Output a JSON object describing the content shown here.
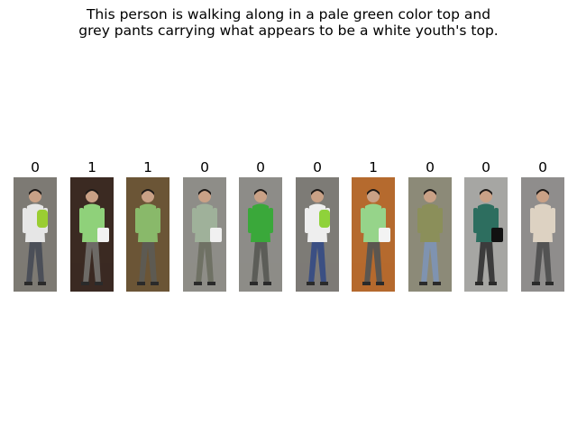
{
  "caption": {
    "line1": "This person is walking along in a pale green color top and",
    "line2": "grey pants carrying what appears to be a white youth's top."
  },
  "gallery": {
    "items": [
      {
        "label": "0",
        "image": "person-crop-green-backpack-woman",
        "bg": "#7d7a74",
        "top": "#e6e6e6",
        "pants": "#4b4f58",
        "accent": "#9acd32",
        "has_bag": false,
        "has_backpack": true
      },
      {
        "label": "1",
        "image": "person-crop-green-top-white-bag",
        "bg": "#3b2a22",
        "top": "#8fd17a",
        "pants": "#6d6a66",
        "accent": "#f2f2f2",
        "has_bag": true,
        "has_backpack": false
      },
      {
        "label": "1",
        "image": "person-crop-green-top-dim",
        "bg": "#6b5536",
        "top": "#89b96a",
        "pants": "#5d5a52",
        "accent": "#f2f2f2",
        "has_bag": false,
        "has_backpack": false
      },
      {
        "label": "0",
        "image": "person-crop-striped-top-white-bag",
        "bg": "#8e8d88",
        "top": "#9fb19a",
        "pants": "#6f7164",
        "accent": "#f0f0f0",
        "has_bag": true,
        "has_backpack": false
      },
      {
        "label": "0",
        "image": "person-crop-green-top-bicycles",
        "bg": "#8d8c88",
        "top": "#3aa83a",
        "pants": "#5c5d58",
        "accent": "#222222",
        "has_bag": false,
        "has_backpack": false
      },
      {
        "label": "0",
        "image": "person-crop-green-backpack-jeans",
        "bg": "#7d7b76",
        "top": "#eeeeee",
        "pants": "#3b4f83",
        "accent": "#8fd23a",
        "has_bag": false,
        "has_backpack": true
      },
      {
        "label": "1",
        "image": "person-crop-green-top-orange-wall",
        "bg": "#b56a2e",
        "top": "#96d48a",
        "pants": "#5b5650",
        "accent": "#f3f3f3",
        "has_bag": true,
        "has_backpack": false
      },
      {
        "label": "0",
        "image": "person-crop-khaki-jacket-jeans",
        "bg": "#8c8a78",
        "top": "#8b8f5a",
        "pants": "#7f93b0",
        "accent": "#e8e8e8",
        "has_bag": false,
        "has_backpack": false
      },
      {
        "label": "0",
        "image": "person-crop-dark-top-black-bag",
        "bg": "#a6a6a3",
        "top": "#2d6e5f",
        "pants": "#3c3c3c",
        "accent": "#111111",
        "has_bag": true,
        "has_backpack": false
      },
      {
        "label": "0",
        "image": "person-crop-beige-jacket",
        "bg": "#8f8d8c",
        "top": "#ddd2c2",
        "pants": "#535353",
        "accent": "#c6d9e8",
        "has_bag": false,
        "has_backpack": false
      }
    ]
  }
}
